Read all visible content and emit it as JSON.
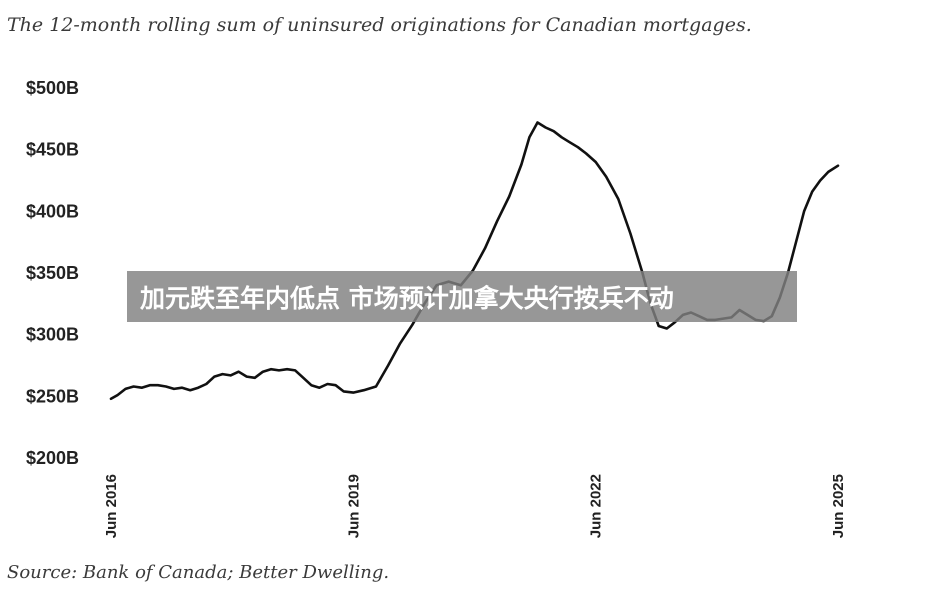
{
  "chart_data": {
    "type": "line",
    "title": "The 12-month rolling sum of uninsured originations for Canadian mortgages.",
    "source": "Source: Bank of Canada; Better Dwelling.",
    "y_axis": {
      "ticks": [
        {
          "value": 200,
          "label": "$200B"
        },
        {
          "value": 250,
          "label": "$250B"
        },
        {
          "value": 300,
          "label": "$300B"
        },
        {
          "value": 350,
          "label": "$350B"
        },
        {
          "value": 400,
          "label": "$400B"
        },
        {
          "value": 450,
          "label": "$450B"
        },
        {
          "value": 500,
          "label": "$500B"
        }
      ],
      "ylim": [
        200,
        500
      ],
      "unit": "$B"
    },
    "x_axis": {
      "ticks": [
        {
          "value": 2016.42,
          "label": "Jun 2016"
        },
        {
          "value": 2019.42,
          "label": "Jun 2019"
        },
        {
          "value": 2022.42,
          "label": "Jun 2022"
        },
        {
          "value": 2025.42,
          "label": "Jun 2025"
        }
      ],
      "xlim": [
        2016.42,
        2025.42
      ]
    },
    "grid": false,
    "legend": "none",
    "line_color": "#111111",
    "series": [
      {
        "x": [
          2016.42,
          2016.5,
          2016.6,
          2016.7,
          2016.8,
          2016.9,
          2017.0,
          2017.1,
          2017.2,
          2017.3,
          2017.4,
          2017.5,
          2017.6,
          2017.7,
          2017.8,
          2017.9,
          2018.0,
          2018.1,
          2018.2,
          2018.3,
          2018.4,
          2018.5,
          2018.6,
          2018.7,
          2018.8,
          2018.9,
          2019.0,
          2019.1,
          2019.2,
          2019.3,
          2019.42,
          2019.55,
          2019.7,
          2019.85,
          2020.0,
          2020.15,
          2020.3,
          2020.45,
          2020.6,
          2020.75,
          2020.9,
          2021.05,
          2021.2,
          2021.35,
          2021.5,
          2021.6,
          2021.7,
          2021.8,
          2021.9,
          2022.0,
          2022.1,
          2022.2,
          2022.3,
          2022.42,
          2022.55,
          2022.7,
          2022.85,
          2023.0,
          2023.1,
          2023.2,
          2023.3,
          2023.4,
          2023.5,
          2023.6,
          2023.7,
          2023.8,
          2023.9,
          2024.0,
          2024.1,
          2024.2,
          2024.3,
          2024.4,
          2024.5,
          2024.6,
          2024.7,
          2024.8,
          2024.9,
          2025.0,
          2025.1,
          2025.2,
          2025.3,
          2025.42
        ],
        "values": [
          248,
          251,
          256,
          258,
          257,
          259,
          259,
          258,
          256,
          257,
          255,
          257,
          260,
          266,
          268,
          267,
          270,
          266,
          265,
          270,
          272,
          271,
          272,
          271,
          265,
          259,
          257,
          260,
          259,
          254,
          253,
          255,
          258,
          275,
          293,
          308,
          325,
          340,
          343,
          340,
          352,
          370,
          392,
          412,
          438,
          460,
          472,
          468,
          465,
          460,
          456,
          452,
          447,
          440,
          428,
          410,
          382,
          350,
          325,
          307,
          305,
          310,
          316,
          318,
          315,
          312,
          312,
          313,
          314,
          320,
          316,
          312,
          311,
          315,
          330,
          350,
          375,
          400,
          416,
          425,
          432,
          437
        ]
      }
    ]
  },
  "overlay": {
    "text": "加元跌至年内低点 市场预计加拿大央行按兵不动"
  }
}
